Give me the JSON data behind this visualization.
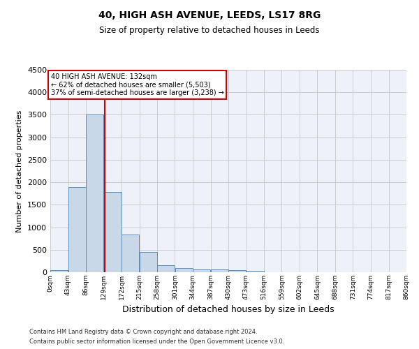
{
  "title": "40, HIGH ASH AVENUE, LEEDS, LS17 8RG",
  "subtitle": "Size of property relative to detached houses in Leeds",
  "xlabel": "Distribution of detached houses by size in Leeds",
  "ylabel": "Number of detached properties",
  "footer_line1": "Contains HM Land Registry data © Crown copyright and database right 2024.",
  "footer_line2": "Contains public sector information licensed under the Open Government Licence v3.0.",
  "bin_edges": [
    0,
    43,
    86,
    129,
    172,
    215,
    258,
    301,
    344,
    387,
    430,
    473,
    516,
    559,
    602,
    645,
    688,
    731,
    774,
    817,
    860
  ],
  "bar_heights": [
    50,
    1900,
    3500,
    1780,
    840,
    450,
    160,
    100,
    65,
    55,
    40,
    30,
    0,
    0,
    0,
    0,
    0,
    0,
    0,
    0
  ],
  "bar_color": "#c8d8e8",
  "bar_edge_color": "#5b8db8",
  "grid_color": "#cccccc",
  "bg_color": "#eef2f8",
  "vline_x": 132,
  "vline_color": "#cc0000",
  "annotation_text": "40 HIGH ASH AVENUE: 132sqm\n← 62% of detached houses are smaller (5,503)\n37% of semi-detached houses are larger (3,238) →",
  "annotation_box_color": "#cc0000",
  "ylim": [
    0,
    4500
  ],
  "yticks": [
    0,
    500,
    1000,
    1500,
    2000,
    2500,
    3000,
    3500,
    4000,
    4500
  ],
  "tick_labels": [
    "0sqm",
    "43sqm",
    "86sqm",
    "129sqm",
    "172sqm",
    "215sqm",
    "258sqm",
    "301sqm",
    "344sqm",
    "387sqm",
    "430sqm",
    "473sqm",
    "516sqm",
    "559sqm",
    "602sqm",
    "645sqm",
    "688sqm",
    "731sqm",
    "774sqm",
    "817sqm",
    "860sqm"
  ]
}
